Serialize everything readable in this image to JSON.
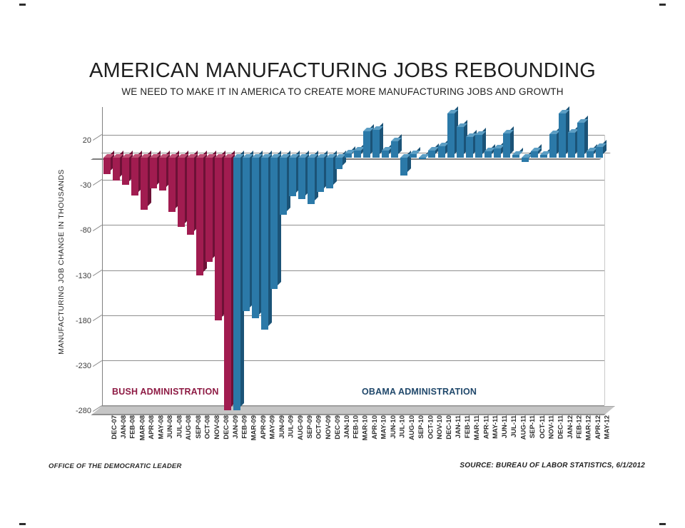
{
  "title": "AMERICAN MANUFACTURING JOBS REBOUNDING",
  "subtitle": "WE NEED TO MAKE IT IN AMERICA TO CREATE MORE MANUFACTURING JOBS AND GROWTH",
  "footer": {
    "left": "OFFICE OF THE DEMOCRATIC LEADER",
    "right": "SOURCE: BUREAU OF LABOR STATISTICS, 6/1/2012"
  },
  "chart_data": {
    "type": "bar",
    "style": "3d-column",
    "title": "AMERICAN MANUFACTURING JOBS REBOUNDING",
    "subtitle": "WE NEED TO MAKE IT IN AMERICA TO CREATE MORE MANUFACTURING JOBS AND GROWTH",
    "xlabel": "",
    "ylabel": "MANUFACTURING JOB CHANGE IN THOUSANDS",
    "yticks": [
      20,
      -30,
      -80,
      -130,
      -180,
      -230,
      -280
    ],
    "ylim": [
      -280,
      55
    ],
    "grid": true,
    "categories": [
      "DEC-07",
      "JAN-08",
      "FEB-08",
      "MAR-08",
      "APR-08",
      "MAY-08",
      "JUN-08",
      "JUL-08",
      "AUG-08",
      "SEP-08",
      "OCT-08",
      "NOV-08",
      "DEC-08",
      "JAN-09",
      "FEB-09",
      "MAR-09",
      "APR-09",
      "MAY-09",
      "JUN-09",
      "JUL-09",
      "AUG-09",
      "SEP-09",
      "OCT-09",
      "NOV-09",
      "DEC-09",
      "JAN-10",
      "FEB-10",
      "MAR-10",
      "APR-10",
      "MAY-10",
      "JUN-10",
      "JUL-10",
      "AUG-10",
      "SEP-10",
      "OCT-10",
      "NOV-10",
      "DEC-10",
      "JAN-11",
      "FEB-11",
      "MAR-11",
      "APR-11",
      "MAY-11",
      "JUN-11",
      "JUL-11",
      "AUG-11",
      "SEP-11",
      "OCT-11",
      "NOV-11",
      "DEC-11",
      "JAN-12",
      "FEB-12",
      "MAR-12",
      "APR-12",
      "MAY-12"
    ],
    "values": [
      -18,
      -25,
      -30,
      -42,
      -58,
      -34,
      -36,
      -60,
      -77,
      -85,
      -130,
      -115,
      -180,
      -280,
      -280,
      -170,
      -178,
      -190,
      -145,
      -63,
      -43,
      -46,
      -51,
      -38,
      -34,
      -13,
      5,
      8,
      29,
      31,
      8,
      18,
      -20,
      4,
      -1,
      8,
      13,
      49,
      34,
      23,
      25,
      7,
      10,
      27,
      3,
      -5,
      7,
      3,
      26,
      49,
      28,
      39,
      7,
      12
    ],
    "groups": [
      {
        "name": "BUSH ADMINISTRATION",
        "count": 14,
        "from": "DEC-07",
        "to": "JAN-09",
        "color": "#A11C50",
        "color_top": "#BE4E74",
        "color_side": "#6D1136",
        "label_color": "#8E1B44"
      },
      {
        "name": "OBAMA ADMINISTRATION",
        "count": 40,
        "from": "FEB-09",
        "to": "MAY-12",
        "color": "#2B79A8",
        "color_top": "#5C9EC4",
        "color_side": "#1B5377",
        "label_color": "#20486B"
      }
    ],
    "legend_position": "inside-bottom",
    "note": "bars for JAN-09 and FEB-09 extend to the -280 axis floor"
  }
}
